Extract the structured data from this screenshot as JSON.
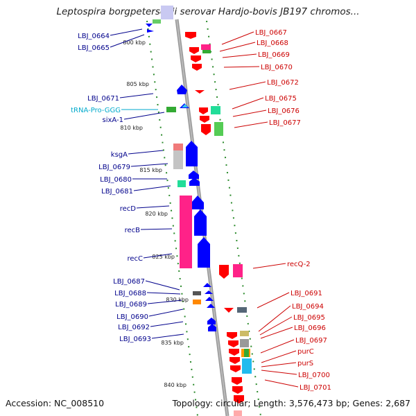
{
  "title": "Leptospira borgpetersenii serovar Hardjo-bovis JB197 chromos...",
  "accession": "Accession: NC_008510",
  "summary": "Topology: circular; Length: 3,576,473 bp; Genes: 2,687",
  "kbp_ticks": [
    "800 kbp",
    "805 kbp",
    "810 kbp",
    "815 kbp",
    "820 kbp",
    "825 kbp",
    "830 kbp",
    "835 kbp",
    "840 kbp"
  ],
  "left_labels": [
    "LBJ_0664",
    "LBJ_0665",
    "LBJ_0671",
    "tRNA-Pro-GGG",
    "sixA-1",
    "ksgA",
    "LBJ_0679",
    "LBJ_0680",
    "LBJ_0681",
    "recD",
    "recB",
    "recC",
    "LBJ_0687",
    "LBJ_0688",
    "LBJ_0689",
    "LBJ_0690",
    "LBJ_0692",
    "LBJ_0693"
  ],
  "right_labels": [
    "LBJ_0667",
    "LBJ_0668",
    "LBJ_0669",
    "LBJ_0670",
    "LBJ_0672",
    "LBJ_0675",
    "LBJ_0676",
    "LBJ_0677",
    "recQ-2",
    "LBJ_0691",
    "LBJ_0694",
    "LBJ_0695",
    "LBJ_0696",
    "LBJ_0697",
    "purC",
    "purS",
    "LBJ_0700",
    "LBJ_0701"
  ],
  "colors": {
    "left_label": "#00008b",
    "trna_label": "#00aacc",
    "right_label": "#cc0000",
    "forward_gene": "#0000ff",
    "reverse_gene": "#ff0000",
    "backbone": "#999999",
    "gc_dots": "#2a8a2a"
  }
}
